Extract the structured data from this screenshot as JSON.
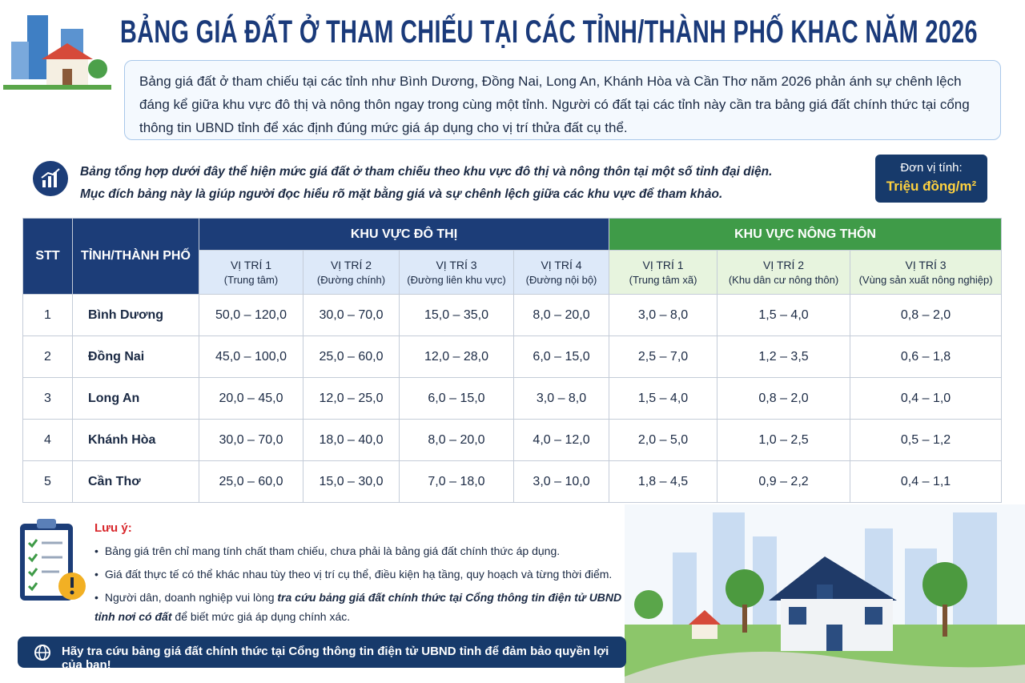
{
  "header": {
    "title": "BẢNG GIÁ ĐẤT Ở THAM CHIẾU TẠI CÁC TỈNH/THÀNH PHỐ KHAC NĂM 2026",
    "intro": "Bảng giá đất ở tham chiếu tại các tỉnh như Bình Dương, Đồng Nai, Long An, Khánh Hòa và Cần Thơ năm 2026 phản ánh sự chênh lệch đáng kể giữa khu vực đô thị và nông thôn ngay trong cùng một tỉnh. Người có đất tại các tỉnh này cần tra bảng giá đất chính thức tại cổng thông tin UBND tỉnh để xác định đúng mức giá áp dụng cho vị trí thửa đất cụ thể."
  },
  "summary": {
    "lines": [
      "Bảng tổng hợp dưới đây thể hiện mức giá đất ở tham chiếu theo khu vực đô thị và nông thôn tại một số tỉnh đại diện.",
      "Mục đích bảng này là giúp người đọc hiểu rõ mặt bằng giá và sự chênh lệch giữa các khu vực để tham khảo."
    ],
    "unit_label": "Đơn vị tính:",
    "unit": "Triệu đồng/m²"
  },
  "table": {
    "stt": "STT",
    "province": "TỈNH/THÀNH PHỐ",
    "groups": [
      {
        "title": "KHU VỰC ĐÔ THỊ",
        "columns": [
          {
            "name": "VỊ TRÍ 1",
            "sub": "(Trung tâm)"
          },
          {
            "name": "VỊ TRÍ 2",
            "sub": "(Đường chính)"
          },
          {
            "name": "VỊ TRÍ 3",
            "sub": "(Đường liên khu vực)"
          },
          {
            "name": "VỊ TRÍ 4",
            "sub": "(Đường nội bộ)"
          }
        ]
      },
      {
        "title": "KHU VỰC NÔNG THÔN",
        "columns": [
          {
            "name": "VỊ TRÍ 1",
            "sub": "(Trung tâm xã)"
          },
          {
            "name": "VỊ TRÍ 2",
            "sub": "(Khu dân cư nông thôn)"
          },
          {
            "name": "VỊ TRÍ 3",
            "sub": "(Vùng sản xuất nông nghiệp)"
          }
        ]
      }
    ],
    "rows": [
      [
        "1",
        "Bình Dương",
        "50,0 – 120,0",
        "30,0 – 70,0",
        "15,0 – 35,0",
        "8,0 – 20,0",
        "3,0 – 8,0",
        "1,5 – 4,0",
        "0,8 – 2,0"
      ],
      [
        "2",
        "Đồng Nai",
        "45,0 – 100,0",
        "25,0 – 60,0",
        "12,0 – 28,0",
        "6,0 – 15,0",
        "2,5 – 7,0",
        "1,2 – 3,5",
        "0,6 – 1,8"
      ],
      [
        "3",
        "Long An",
        "20,0 – 45,0",
        "12,0 – 25,0",
        "6,0 – 15,0",
        "3,0 – 8,0",
        "1,5 – 4,0",
        "0,8 – 2,0",
        "0,4 – 1,0"
      ],
      [
        "4",
        "Khánh Hòa",
        "30,0 – 70,0",
        "18,0 – 40,0",
        "8,0 – 20,0",
        "4,0 – 12,0",
        "2,0 – 5,0",
        "1,0 – 2,5",
        "0,5 – 1,2"
      ],
      [
        "5",
        "Cần Thơ",
        "25,0 – 60,0",
        "15,0 – 30,0",
        "7,0 – 18,0",
        "3,0 – 10,0",
        "1,8 – 4,5",
        "0,9 – 2,2",
        "0,4 – 1,1"
      ]
    ]
  },
  "notes": {
    "title": "Lưu ý:",
    "items": [
      "Bảng giá trên chỉ mang tính chất tham chiếu, chưa phải là bảng giá đất chính thức áp dụng.",
      "Giá đất thực tế có thể khác nhau tùy theo vị trí cụ thể, điều kiện hạ tầng, quy hoạch và từng thời điểm."
    ],
    "last": {
      "before": "Người dân, doanh nghiệp vui lòng ",
      "emphasis": "tra cứu bảng giá đất chính thức tại Cổng thông tin điện tử UBND tỉnh nơi có đất",
      "after": " để biết mức giá áp dụng chính xác."
    }
  },
  "footer": {
    "text": "Hãy tra cứu bảng giá đất chính thức tại Cổng thông tin điện tử UBND tỉnh để đảm bảo quyền lợi của bạn!"
  }
}
